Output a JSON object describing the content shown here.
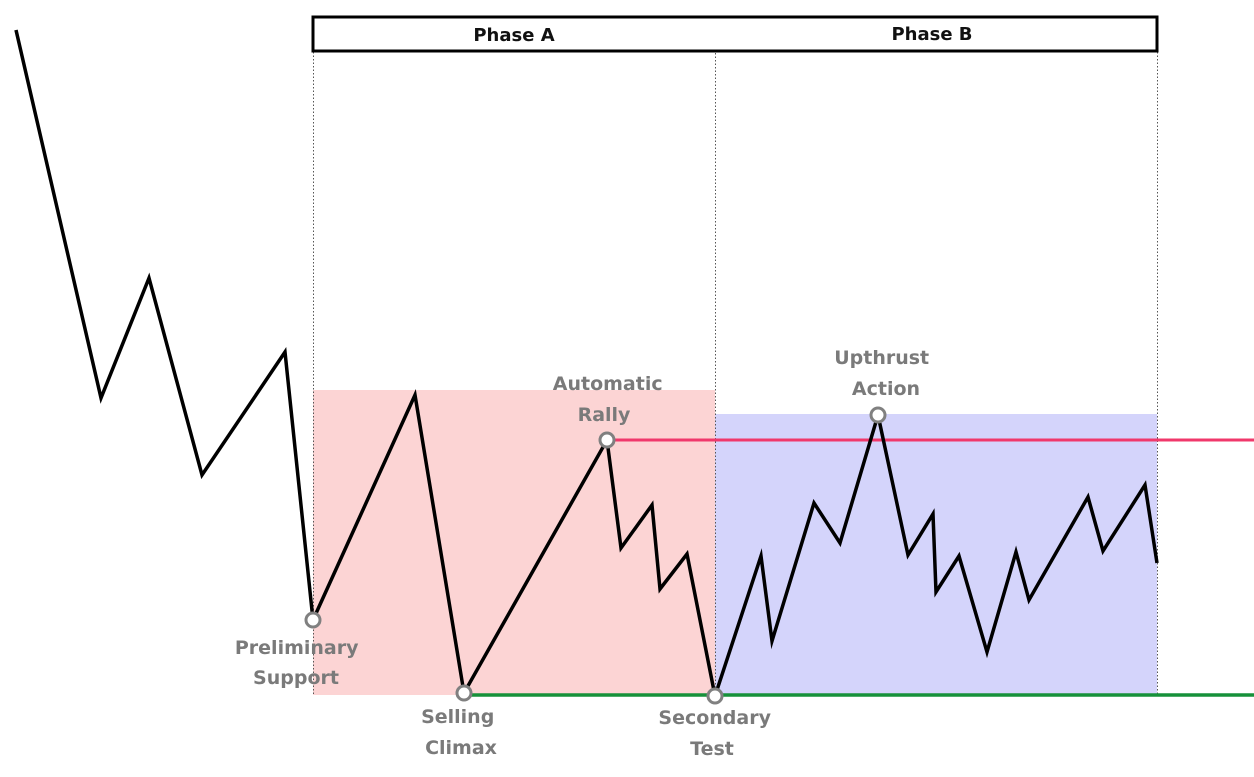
{
  "phases": [
    {
      "label": "Phase A",
      "fill": "#fcd4d4"
    },
    {
      "label": "Phase B",
      "fill": "#d4d4fb"
    }
  ],
  "events": {
    "preliminary_support": {
      "line1": "Preliminary",
      "line2": "Support"
    },
    "selling_climax": {
      "line1": "Selling",
      "line2": "Climax"
    },
    "automatic_rally": {
      "line1": "Automatic",
      "line2": "Rally"
    },
    "secondary_test": {
      "line1": "Secondary",
      "line2": "Test"
    },
    "upthrust_action": {
      "line1": "Upthrust",
      "line2": "Action"
    }
  },
  "colors": {
    "resistance_line": "#f0386b",
    "support_line": "#16913a",
    "price_line": "#000000",
    "marker": "#808080"
  }
}
